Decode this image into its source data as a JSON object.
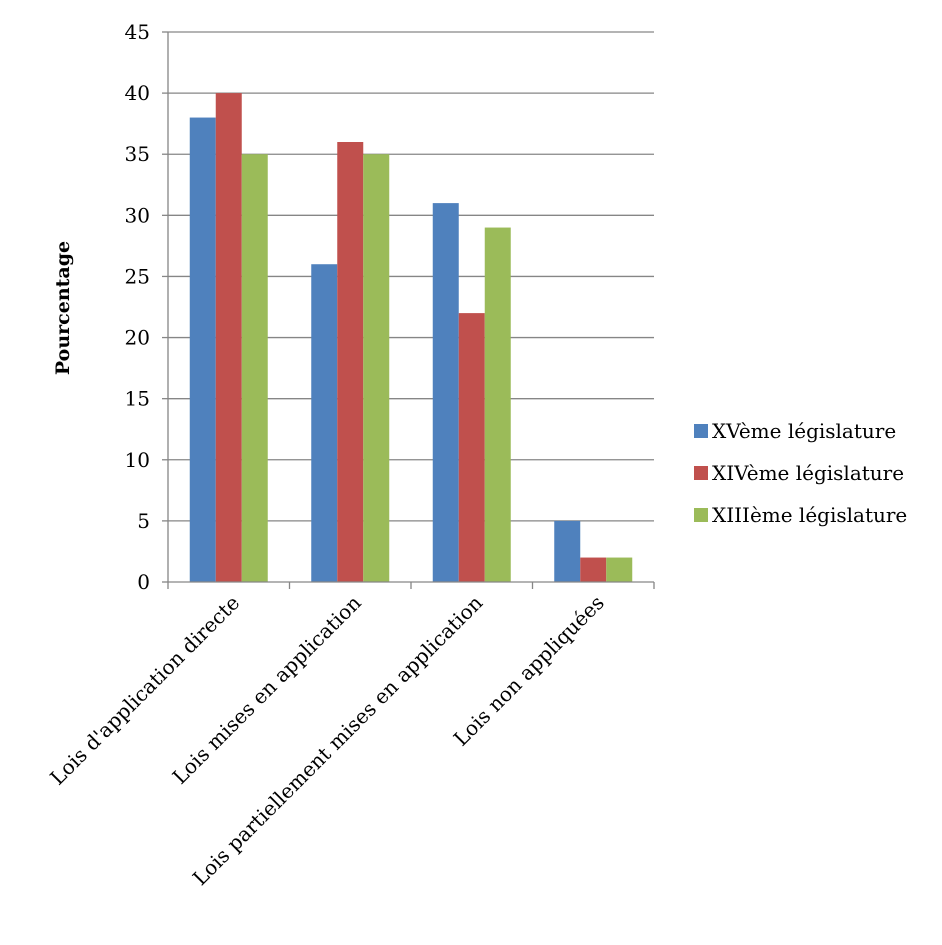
{
  "chart_data": {
    "type": "bar",
    "title": "",
    "xlabel": "",
    "ylabel": "Pourcentage",
    "categories": [
      "Lois d'application directe",
      "Lois mises en application",
      "Lois partiellement mises en application",
      "Lois non appliquées"
    ],
    "series": [
      {
        "name": "XVème législature",
        "color": "#4F81BD",
        "values": [
          38,
          26,
          31,
          5
        ]
      },
      {
        "name": "XIVème législature",
        "color": "#C0504D",
        "values": [
          40,
          36,
          22,
          2
        ]
      },
      {
        "name": "XIIIème législature",
        "color": "#9BBB59",
        "values": [
          35,
          35,
          29,
          2
        ]
      }
    ],
    "ylim": [
      0,
      45
    ],
    "yticks": [
      0,
      5,
      10,
      15,
      20,
      25,
      30,
      35,
      40,
      45
    ],
    "grid": true,
    "legend_position": "right"
  }
}
